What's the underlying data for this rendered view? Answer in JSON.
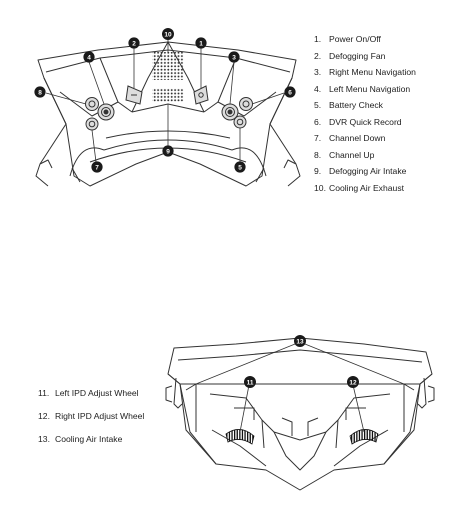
{
  "top_diagram": {
    "callouts": [
      {
        "number": "1",
        "label": "Power On/Off"
      },
      {
        "number": "2",
        "label": "Defogging Fan"
      },
      {
        "number": "3",
        "label": "Right Menu Navigation"
      },
      {
        "number": "4",
        "label": "Left Menu Navigation"
      },
      {
        "number": "5",
        "label": "Battery Check"
      },
      {
        "number": "6",
        "label": "DVR Quick Record"
      },
      {
        "number": "7",
        "label": "Channel Down"
      },
      {
        "number": "8",
        "label": "Channel Up"
      },
      {
        "number": "9",
        "label": "Defogging Air Intake"
      },
      {
        "number": "10",
        "label": "Cooling Air Exhaust"
      }
    ]
  },
  "bottom_diagram": {
    "callouts": [
      {
        "number": "11",
        "label": "Left IPD Adjust Wheel"
      },
      {
        "number": "12",
        "label": "Right IPD Adjust Wheel"
      },
      {
        "number": "13",
        "label": "Cooling Air Intake"
      }
    ]
  },
  "legend_number_suffix": ".",
  "colors": {
    "line": "#333333",
    "badge": "#1a1a1a",
    "button_fill": "#dddddd",
    "background": "#ffffff"
  }
}
